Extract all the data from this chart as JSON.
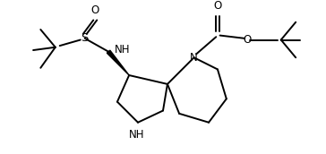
{
  "bg_color": "#ffffff",
  "line_color": "#000000",
  "line_width": 1.4,
  "font_size": 8.5,
  "figsize": [
    3.64,
    1.72
  ],
  "dpi": 100,
  "xlim": [
    0,
    10
  ],
  "ylim": [
    0,
    4.7
  ]
}
